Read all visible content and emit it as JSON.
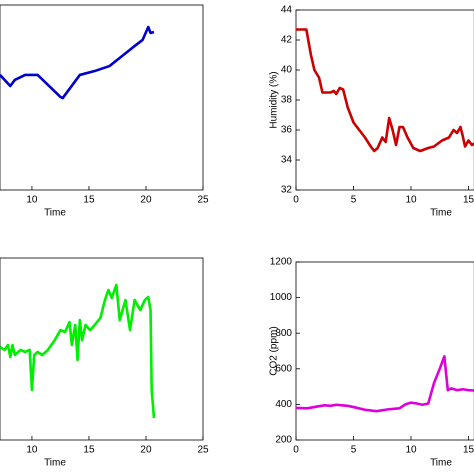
{
  "chart_data": [
    {
      "type": "line",
      "xlabel": "Time",
      "xlim": [
        7.2,
        25
      ],
      "ylim": [
        0,
        100
      ],
      "xticks": [
        10,
        15,
        20,
        25
      ],
      "series": [
        {
          "color": "#0000cc",
          "x": [
            7.2,
            8.1,
            8.5,
            9.4,
            10.5,
            12.5,
            12.7,
            14.2,
            15.5,
            16.8,
            17.7,
            19.0,
            19.7,
            20.2,
            20.4,
            20.7
          ],
          "values": [
            62.2,
            56.2,
            59.5,
            62.2,
            62.2,
            50.3,
            49.7,
            62.2,
            64.3,
            67,
            71.4,
            77.8,
            81.1,
            88.1,
            84.9,
            85.4
          ]
        }
      ]
    },
    {
      "type": "line",
      "xlabel": "Time",
      "ylabel": "Humidity (%)",
      "xlim": [
        0,
        15.5
      ],
      "ylim": [
        32,
        44
      ],
      "xticks": [
        0,
        5,
        10,
        15
      ],
      "yticks": [
        32,
        34,
        36,
        38,
        40,
        42,
        44
      ],
      "series": [
        {
          "color": "#cc0000",
          "x": [
            0,
            0.9,
            1.3,
            1.6,
            2,
            2.3,
            3,
            3.3,
            3.5,
            3.8,
            4.1,
            4.5,
            5,
            5.5,
            6,
            6.5,
            6.8,
            7.1,
            7.5,
            7.8,
            8.1,
            8.4,
            8.7,
            9,
            9.3,
            9.7,
            10.2,
            10.8,
            11.5,
            12,
            12.7,
            13.3,
            13.7,
            14,
            14.3,
            14.5,
            14.7,
            15,
            15.3,
            15.5
          ],
          "values": [
            42.7,
            42.7,
            41,
            40,
            39.5,
            38.5,
            38.5,
            38.6,
            38.4,
            38.8,
            38.7,
            37.5,
            36.5,
            36,
            35.5,
            34.9,
            34.6,
            34.8,
            35.5,
            35.2,
            36.8,
            36,
            35,
            36.2,
            36.2,
            35.5,
            34.8,
            34.6,
            34.8,
            34.9,
            35.3,
            35.5,
            36,
            35.8,
            36.2,
            35.6,
            34.9,
            35.3,
            35,
            35.1
          ]
        }
      ]
    },
    {
      "type": "line",
      "xlabel": "Time",
      "xlim": [
        7.2,
        25
      ],
      "ylim": [
        0,
        100
      ],
      "xticks": [
        10,
        15,
        20,
        25
      ],
      "series": [
        {
          "color": "#00ee00",
          "x": [
            7.2,
            7.6,
            7.9,
            8.1,
            8.3,
            8.5,
            9.0,
            9.4,
            9.8,
            10.0,
            10.2,
            10.5,
            10.9,
            11.4,
            12.0,
            12.5,
            12.9,
            13.3,
            13.5,
            13.8,
            14.0,
            14.2,
            14.4,
            14.7,
            15.1,
            15.5,
            16.0,
            16.4,
            16.7,
            17.0,
            17.3,
            17.4,
            17.7,
            18.2,
            18.6,
            19.0,
            19.5,
            19.9,
            20.2,
            20.4,
            20.5,
            20.7
          ],
          "values": [
            51.1,
            49.5,
            52.2,
            45.6,
            52.2,
            46.7,
            49.5,
            48.4,
            49.5,
            27.5,
            46.7,
            48.4,
            46.7,
            49.5,
            54.9,
            60.4,
            59.3,
            64.8,
            52.2,
            63.2,
            44.0,
            65.9,
            54.9,
            63.2,
            60.4,
            63.2,
            67.0,
            76.9,
            82.4,
            78.0,
            83.5,
            85.2,
            65.9,
            76.9,
            60.4,
            76.9,
            71.4,
            76.9,
            78.6,
            71.4,
            27.5,
            12.1
          ]
        }
      ]
    },
    {
      "type": "line",
      "xlabel": "Time",
      "ylabel": "CO2 (ppm)",
      "xlim": [
        0,
        15.5
      ],
      "ylim": [
        200,
        1200
      ],
      "xticks": [
        0,
        5,
        10,
        15
      ],
      "yticks": [
        200,
        400,
        600,
        800,
        1000,
        1200
      ],
      "series": [
        {
          "color": "#dd00dd",
          "x": [
            0,
            1,
            2,
            2.5,
            3,
            3.5,
            4,
            4.5,
            5,
            6,
            7,
            8,
            9,
            9.5,
            10,
            10.5,
            11,
            11.5,
            12,
            12.5,
            12.9,
            13.2,
            13.5,
            14,
            14.5,
            15,
            15.5
          ],
          "values": [
            380,
            378,
            390,
            395,
            392,
            398,
            395,
            392,
            385,
            370,
            362,
            372,
            378,
            400,
            410,
            405,
            398,
            405,
            520,
            600,
            670,
            480,
            490,
            480,
            485,
            480,
            478
          ]
        }
      ]
    }
  ]
}
